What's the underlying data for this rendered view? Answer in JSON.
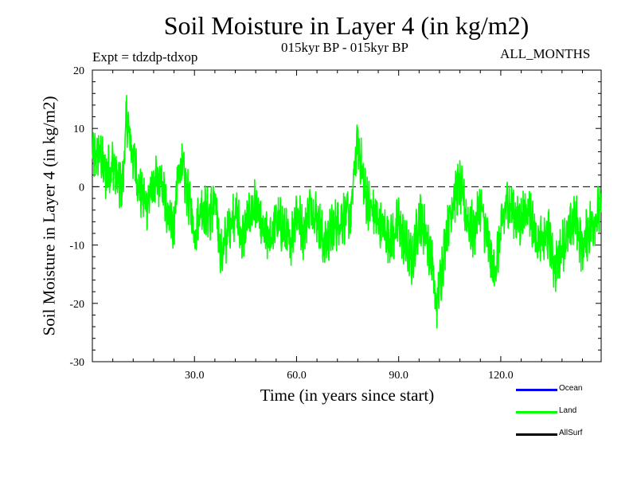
{
  "chart_data": {
    "type": "line",
    "title": "Soil Moisture in Layer 4 (in kg/m2)",
    "subtitle": "015kyr BP - 015kyr BP",
    "experiment": "Expt = tdzdp-tdxop",
    "months": "ALL_MONTHS",
    "xlabel": "Time (in years since start)",
    "ylabel": "Soil Moisture in Layer 4 (in kg/m2)",
    "xlim": [
      0.0,
      149.5
    ],
    "ylim": [
      -30,
      20
    ],
    "xticks": [
      30,
      60,
      90,
      120
    ],
    "xtick_labels": [
      "30.0",
      "60.0",
      "90.0",
      "120.0"
    ],
    "yticks": [
      -30,
      -20,
      -10,
      0,
      10,
      20
    ],
    "ytick_labels": [
      "-30",
      "-20",
      "-10",
      "0",
      "10",
      "20"
    ],
    "zero_line": 0,
    "legend": [
      {
        "name": "Ocean",
        "color": "#0000ee"
      },
      {
        "name": "Land",
        "color": "#00ff00"
      },
      {
        "name": "AllSurf",
        "color": "#000000"
      }
    ],
    "series": [
      {
        "name": "Land",
        "color": "#00ff00",
        "x": [
          0,
          2,
          4,
          6,
          8,
          9,
          10,
          12,
          14,
          16,
          18,
          20,
          22,
          24,
          25,
          26,
          28,
          30,
          32,
          34,
          36,
          38,
          40,
          42,
          44,
          46,
          48,
          50,
          52,
          54,
          56,
          58,
          60,
          62,
          64,
          66,
          68,
          70,
          72,
          74,
          76,
          77,
          78,
          80,
          82,
          84,
          86,
          88,
          90,
          92,
          94,
          96,
          98,
          100,
          101,
          102,
          104,
          106,
          108,
          110,
          112,
          114,
          116,
          118,
          120,
          122,
          124,
          126,
          128,
          130,
          132,
          134,
          136,
          138,
          140,
          142,
          144,
          146,
          148,
          149.5
        ],
        "values": [
          5,
          6,
          2,
          4,
          0,
          1,
          12,
          5,
          -1,
          -3,
          0,
          1,
          -4,
          -7,
          1,
          4,
          -1,
          -8,
          -3,
          -5,
          -3,
          -12,
          -7,
          -4,
          -9,
          -5,
          -3,
          -8,
          -9,
          -6,
          -7,
          -10,
          -4,
          -8,
          -3,
          -5,
          -10,
          -8,
          -6,
          -5,
          -5,
          3,
          8,
          -1,
          -4,
          -6,
          -8,
          -9,
          -6,
          -10,
          -13,
          -5,
          -8,
          -14,
          -21,
          -17,
          -8,
          -2,
          0,
          -5,
          -8,
          -3,
          -9,
          -15,
          -8,
          -2,
          -5,
          -6,
          -3,
          -8,
          -10,
          -8,
          -14,
          -10,
          -8,
          -5,
          -11,
          -7,
          -5,
          -4
        ]
      }
    ]
  }
}
